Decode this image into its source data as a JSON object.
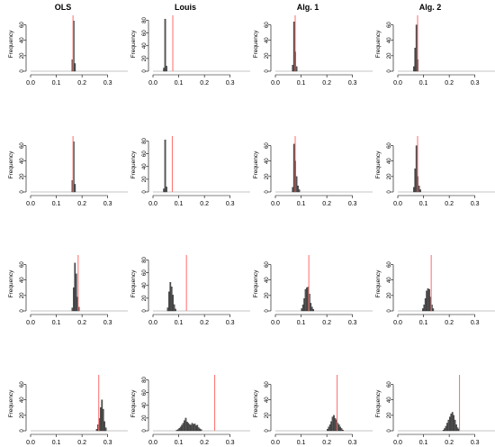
{
  "column_titles": [
    "OLS",
    "Louis",
    "Alg. 1",
    "Alg. 2"
  ],
  "chart_data": {
    "type": "histogram-grid",
    "rows": 4,
    "cols": 4,
    "ylabel": "Frequency",
    "xlim": [
      0.0,
      0.35
    ],
    "x_ticks": [
      0.0,
      0.1,
      0.2,
      0.3
    ],
    "x_tick_labels": [
      "0.0",
      "0.1",
      "0.2",
      "0.3"
    ],
    "bin_width": 0.005,
    "bar_color": "#555555",
    "vline_color": "#ff6b6b",
    "panels": [
      {
        "row": 0,
        "col": 0,
        "title": "OLS",
        "ylim": [
          0,
          70
        ],
        "y_ticks": [
          0,
          20,
          40,
          60
        ],
        "vline": 0.165,
        "bins": [
          [
            0.155,
            0
          ],
          [
            0.16,
            15
          ],
          [
            0.165,
            65
          ],
          [
            0.17,
            10
          ]
        ]
      },
      {
        "row": 0,
        "col": 1,
        "title": "Louis",
        "ylim": [
          0,
          85
        ],
        "y_ticks": [
          0,
          20,
          40,
          60,
          80
        ],
        "vline": 0.077,
        "bins": [
          [
            0.04,
            5
          ],
          [
            0.045,
            82
          ],
          [
            0.05,
            8
          ]
        ]
      },
      {
        "row": 0,
        "col": 2,
        "title": "Alg. 1",
        "ylim": [
          0,
          70
        ],
        "y_ticks": [
          0,
          20,
          40,
          60
        ],
        "vline": 0.077,
        "bins": [
          [
            0.065,
            8
          ],
          [
            0.07,
            64
          ],
          [
            0.075,
            25
          ],
          [
            0.08,
            6
          ]
        ]
      },
      {
        "row": 0,
        "col": 3,
        "title": "Alg. 2",
        "ylim": [
          0,
          70
        ],
        "y_ticks": [
          0,
          20,
          40,
          60
        ],
        "vline": 0.077,
        "bins": [
          [
            0.06,
            6
          ],
          [
            0.065,
            30
          ],
          [
            0.07,
            60
          ],
          [
            0.075,
            15
          ]
        ]
      },
      {
        "row": 1,
        "col": 0,
        "ylim": [
          0,
          70
        ],
        "y_ticks": [
          0,
          20,
          40,
          60
        ],
        "vline": 0.165,
        "bins": [
          [
            0.155,
            0
          ],
          [
            0.16,
            15
          ],
          [
            0.165,
            65
          ],
          [
            0.17,
            10
          ]
        ]
      },
      {
        "row": 1,
        "col": 1,
        "ylim": [
          0,
          85
        ],
        "y_ticks": [
          0,
          20,
          40,
          60,
          80
        ],
        "vline": 0.075,
        "bins": [
          [
            0.04,
            5
          ],
          [
            0.045,
            82
          ],
          [
            0.05,
            8
          ]
        ]
      },
      {
        "row": 1,
        "col": 2,
        "ylim": [
          0,
          70
        ],
        "y_ticks": [
          0,
          20,
          40,
          60
        ],
        "vline": 0.077,
        "bins": [
          [
            0.065,
            6
          ],
          [
            0.07,
            62
          ],
          [
            0.075,
            40
          ],
          [
            0.08,
            20
          ],
          [
            0.085,
            8
          ],
          [
            0.09,
            3
          ]
        ]
      },
      {
        "row": 1,
        "col": 3,
        "ylim": [
          0,
          70
        ],
        "y_ticks": [
          0,
          20,
          40,
          60
        ],
        "vline": 0.077,
        "bins": [
          [
            0.06,
            6
          ],
          [
            0.065,
            30
          ],
          [
            0.07,
            60
          ],
          [
            0.075,
            20
          ],
          [
            0.08,
            8
          ],
          [
            0.085,
            3
          ]
        ]
      },
      {
        "row": 2,
        "col": 0,
        "ylim": [
          0,
          70
        ],
        "y_ticks": [
          0,
          20,
          40,
          60
        ],
        "vline": 0.185,
        "bins": [
          [
            0.16,
            4
          ],
          [
            0.165,
            30
          ],
          [
            0.17,
            62
          ],
          [
            0.175,
            48
          ],
          [
            0.18,
            18
          ],
          [
            0.185,
            5
          ]
        ]
      },
      {
        "row": 2,
        "col": 1,
        "ylim": [
          0,
          85
        ],
        "y_ticks": [
          0,
          20,
          40,
          60,
          80
        ],
        "vline": 0.13,
        "bins": [
          [
            0.055,
            5
          ],
          [
            0.06,
            30
          ],
          [
            0.065,
            45
          ],
          [
            0.07,
            38
          ],
          [
            0.075,
            25
          ],
          [
            0.08,
            10
          ],
          [
            0.085,
            3
          ]
        ]
      },
      {
        "row": 2,
        "col": 2,
        "ylim": [
          0,
          70
        ],
        "y_ticks": [
          0,
          20,
          40,
          60
        ],
        "vline": 0.13,
        "bins": [
          [
            0.1,
            3
          ],
          [
            0.105,
            8
          ],
          [
            0.11,
            16
          ],
          [
            0.115,
            28
          ],
          [
            0.12,
            30
          ],
          [
            0.125,
            31
          ],
          [
            0.13,
            22
          ],
          [
            0.135,
            10
          ],
          [
            0.14,
            5
          ],
          [
            0.145,
            2
          ]
        ]
      },
      {
        "row": 2,
        "col": 3,
        "ylim": [
          0,
          70
        ],
        "y_ticks": [
          0,
          20,
          40,
          60
        ],
        "vline": 0.13,
        "bins": [
          [
            0.095,
            3
          ],
          [
            0.1,
            8
          ],
          [
            0.105,
            16
          ],
          [
            0.11,
            26
          ],
          [
            0.115,
            29
          ],
          [
            0.12,
            28
          ],
          [
            0.125,
            18
          ],
          [
            0.13,
            8
          ],
          [
            0.135,
            3
          ]
        ]
      },
      {
        "row": 3,
        "col": 0,
        "ylim": [
          0,
          70
        ],
        "y_ticks": [
          0,
          20,
          40,
          60
        ],
        "vline": 0.265,
        "bins": [
          [
            0.255,
            2
          ],
          [
            0.26,
            8
          ],
          [
            0.265,
            16
          ],
          [
            0.27,
            30
          ],
          [
            0.275,
            40
          ],
          [
            0.28,
            28
          ],
          [
            0.285,
            12
          ],
          [
            0.29,
            4
          ]
        ]
      },
      {
        "row": 3,
        "col": 1,
        "ylim": [
          0,
          85
        ],
        "y_ticks": [
          0,
          20,
          40,
          60,
          80
        ],
        "vline": 0.24,
        "bins": [
          [
            0.09,
            1
          ],
          [
            0.095,
            2
          ],
          [
            0.1,
            4
          ],
          [
            0.105,
            6
          ],
          [
            0.11,
            9
          ],
          [
            0.115,
            12
          ],
          [
            0.12,
            16
          ],
          [
            0.125,
            20
          ],
          [
            0.13,
            14
          ],
          [
            0.135,
            12
          ],
          [
            0.14,
            10
          ],
          [
            0.145,
            9
          ],
          [
            0.15,
            12
          ],
          [
            0.155,
            10
          ],
          [
            0.16,
            11
          ],
          [
            0.165,
            8
          ],
          [
            0.17,
            9
          ],
          [
            0.175,
            5
          ],
          [
            0.18,
            3
          ],
          [
            0.185,
            2
          ]
        ]
      },
      {
        "row": 3,
        "col": 2,
        "ylim": [
          0,
          70
        ],
        "y_ticks": [
          0,
          20,
          40,
          60
        ],
        "vline": 0.24,
        "bins": [
          [
            0.2,
            2
          ],
          [
            0.205,
            5
          ],
          [
            0.21,
            8
          ],
          [
            0.215,
            12
          ],
          [
            0.22,
            18
          ],
          [
            0.225,
            20
          ],
          [
            0.23,
            16
          ],
          [
            0.235,
            14
          ],
          [
            0.24,
            10
          ],
          [
            0.245,
            8
          ],
          [
            0.25,
            5
          ],
          [
            0.255,
            3
          ],
          [
            0.26,
            1
          ]
        ]
      },
      {
        "row": 3,
        "col": 3,
        "ylim": [
          0,
          70
        ],
        "y_ticks": [
          0,
          20,
          40,
          60
        ],
        "vline": 0.24,
        "bins": [
          [
            0.175,
            1
          ],
          [
            0.18,
            3
          ],
          [
            0.185,
            6
          ],
          [
            0.19,
            10
          ],
          [
            0.195,
            14
          ],
          [
            0.2,
            18
          ],
          [
            0.205,
            22
          ],
          [
            0.21,
            24
          ],
          [
            0.215,
            20
          ],
          [
            0.22,
            14
          ],
          [
            0.225,
            8
          ],
          [
            0.23,
            4
          ],
          [
            0.235,
            2
          ]
        ]
      }
    ]
  }
}
